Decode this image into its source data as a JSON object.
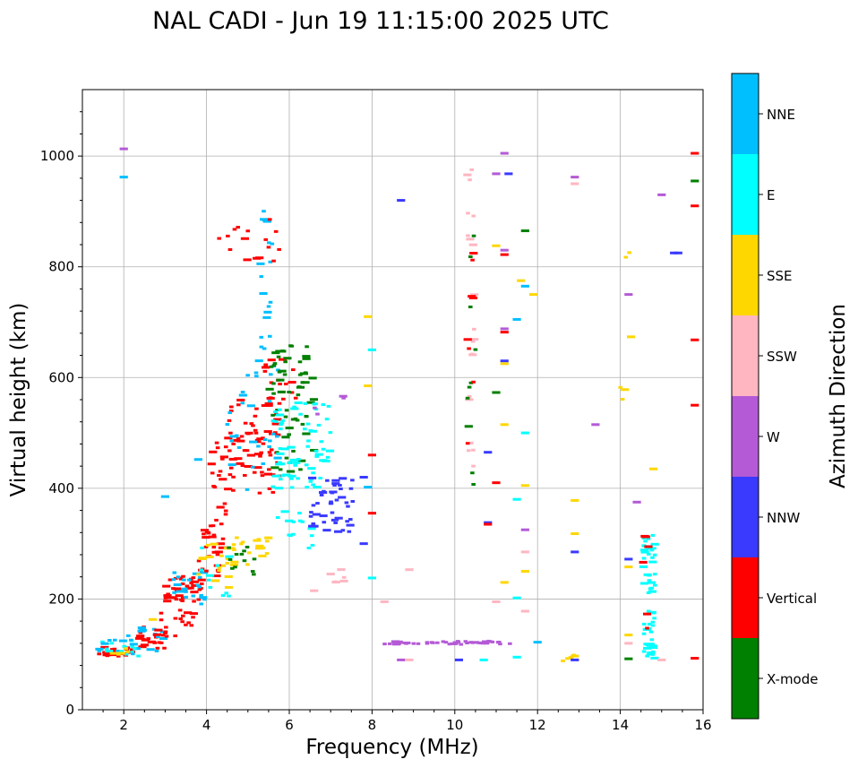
{
  "chart_data": {
    "type": "scatter",
    "title": "NAL CADI - Jun 19 11:15:00 2025 UTC",
    "xlabel": "Frequency (MHz)",
    "ylabel": "Virtual height (km)",
    "xlim": [
      1,
      16
    ],
    "ylim": [
      0,
      1120
    ],
    "xticks": [
      2,
      4,
      6,
      8,
      10,
      12,
      14,
      16
    ],
    "xtick_labels": [
      "2",
      "4",
      "6",
      "8",
      "10",
      "12",
      "14",
      "16"
    ],
    "yticks": [
      0,
      200,
      400,
      600,
      800,
      1000
    ],
    "ytick_labels": [
      "0",
      "200",
      "400",
      "600",
      "800",
      "1000"
    ],
    "grid": true,
    "colorbar": {
      "label": "Azimuth Direction",
      "categories": [
        {
          "name": "X-mode",
          "color": "#008000"
        },
        {
          "name": "Vertical",
          "color": "#ff0000"
        },
        {
          "name": "NNW",
          "color": "#3a3aff"
        },
        {
          "name": "W",
          "color": "#b45ad6"
        },
        {
          "name": "SSW",
          "color": "#ffb6c1"
        },
        {
          "name": "SSE",
          "color": "#ffd700"
        },
        {
          "name": "E",
          "color": "#00ffff"
        },
        {
          "name": "NNE",
          "color": "#00bfff"
        }
      ]
    },
    "clusters": [
      {
        "cat": "Vertical",
        "f": [
          1.4,
          2.2
        ],
        "h": [
          95,
          115
        ],
        "n": 24
      },
      {
        "cat": "E",
        "f": [
          1.4,
          2.4
        ],
        "h": [
          90,
          125
        ],
        "n": 14
      },
      {
        "cat": "NNE",
        "f": [
          1.4,
          2.6
        ],
        "h": [
          95,
          140
        ],
        "n": 12
      },
      {
        "cat": "SSE",
        "f": [
          1.7,
          2.2
        ],
        "h": [
          100,
          115
        ],
        "n": 6
      },
      {
        "cat": "Vertical",
        "f": [
          2.2,
          3.0
        ],
        "h": [
          110,
          150
        ],
        "n": 18
      },
      {
        "cat": "NNE",
        "f": [
          2.2,
          3.0
        ],
        "h": [
          105,
          150
        ],
        "n": 12
      },
      {
        "cat": "Vertical",
        "f": [
          2.8,
          3.7
        ],
        "h": [
          130,
          185
        ],
        "n": 20
      },
      {
        "cat": "Vertical",
        "f": [
          3.0,
          3.9
        ],
        "h": [
          195,
          245
        ],
        "n": 40
      },
      {
        "cat": "NNE",
        "f": [
          3.2,
          4.0
        ],
        "h": [
          190,
          250
        ],
        "n": 22
      },
      {
        "cat": "Vertical",
        "f": [
          3.8,
          4.4
        ],
        "h": [
          240,
          330
        ],
        "n": 26
      },
      {
        "cat": "SSE",
        "f": [
          3.8,
          4.6
        ],
        "h": [
          220,
          300
        ],
        "n": 16
      },
      {
        "cat": "E",
        "f": [
          3.8,
          4.6
        ],
        "h": [
          200,
          300
        ],
        "n": 10
      },
      {
        "cat": "SSE",
        "f": [
          4.4,
          5.6
        ],
        "h": [
          260,
          320
        ],
        "n": 20
      },
      {
        "cat": "X-mode",
        "f": [
          4.5,
          5.2
        ],
        "h": [
          240,
          300
        ],
        "n": 12
      },
      {
        "cat": "Vertical",
        "f": [
          4.1,
          4.6
        ],
        "h": [
          330,
          500
        ],
        "n": 22
      },
      {
        "cat": "Vertical",
        "f": [
          4.5,
          5.8
        ],
        "h": [
          390,
          560
        ],
        "n": 70
      },
      {
        "cat": "NNE",
        "f": [
          4.5,
          5.8
        ],
        "h": [
          380,
          640
        ],
        "n": 30
      },
      {
        "cat": "NNE",
        "f": [
          5.3,
          5.6
        ],
        "h": [
          640,
          910
        ],
        "n": 18
      },
      {
        "cat": "Vertical",
        "f": [
          4.3,
          5.8
        ],
        "h": [
          810,
          890
        ],
        "n": 16
      },
      {
        "cat": "Vertical",
        "f": [
          5.4,
          6.2
        ],
        "h": [
          560,
          640
        ],
        "n": 18
      },
      {
        "cat": "X-mode",
        "f": [
          5.5,
          6.6
        ],
        "h": [
          430,
          660
        ],
        "n": 60
      },
      {
        "cat": "E",
        "f": [
          5.6,
          7.0
        ],
        "h": [
          400,
          560
        ],
        "n": 70
      },
      {
        "cat": "E",
        "f": [
          5.6,
          6.6
        ],
        "h": [
          290,
          360
        ],
        "n": 16
      },
      {
        "cat": "NNW",
        "f": [
          6.5,
          7.6
        ],
        "h": [
          320,
          420
        ],
        "n": 45
      },
      {
        "cat": "W",
        "f": [
          6.6,
          7.4
        ],
        "h": [
          520,
          570
        ],
        "n": 4
      },
      {
        "cat": "SSW",
        "f": [
          6.8,
          7.4
        ],
        "h": [
          230,
          260
        ],
        "n": 6
      },
      {
        "cat": "W",
        "f": [
          8.3,
          11.4
        ],
        "h": [
          118,
          124
        ],
        "n": 44
      },
      {
        "cat": "SSW",
        "f": [
          10.3,
          10.5
        ],
        "h": [
          420,
          980
        ],
        "n": 20
      },
      {
        "cat": "X-mode",
        "f": [
          10.3,
          10.5
        ],
        "h": [
          380,
          890
        ],
        "n": 10
      },
      {
        "cat": "Vertical",
        "f": [
          10.3,
          10.5
        ],
        "h": [
          480,
          830
        ],
        "n": 8
      },
      {
        "cat": "SSE",
        "f": [
          12.5,
          13.0
        ],
        "h": [
          85,
          100
        ],
        "n": 4
      },
      {
        "cat": "SSE",
        "f": [
          14.0,
          14.3
        ],
        "h": [
          560,
          830
        ],
        "n": 6
      },
      {
        "cat": "E",
        "f": [
          14.55,
          14.85
        ],
        "h": [
          90,
          320
        ],
        "n": 60
      },
      {
        "cat": "Vertical",
        "f": [
          14.55,
          14.85
        ],
        "h": [
          120,
          320
        ],
        "n": 6
      }
    ],
    "points": [
      {
        "f": 15.8,
        "h": 1005,
        "cat": "Vertical"
      },
      {
        "f": 15.8,
        "h": 955,
        "cat": "X-mode"
      },
      {
        "f": 15.8,
        "h": 910,
        "cat": "Vertical"
      },
      {
        "f": 15.8,
        "h": 668,
        "cat": "Vertical"
      },
      {
        "f": 15.8,
        "h": 550,
        "cat": "Vertical"
      },
      {
        "f": 15.8,
        "h": 93,
        "cat": "Vertical"
      },
      {
        "f": 15.3,
        "h": 825,
        "cat": "NNW"
      },
      {
        "f": 15.4,
        "h": 825,
        "cat": "NNW"
      },
      {
        "f": 15.0,
        "h": 930,
        "cat": "W"
      },
      {
        "f": 14.8,
        "h": 435,
        "cat": "SSE"
      },
      {
        "f": 14.4,
        "h": 375,
        "cat": "W"
      },
      {
        "f": 14.2,
        "h": 750,
        "cat": "W"
      },
      {
        "f": 14.2,
        "h": 272,
        "cat": "NNW"
      },
      {
        "f": 14.2,
        "h": 258,
        "cat": "SSE"
      },
      {
        "f": 14.2,
        "h": 135,
        "cat": "SSE"
      },
      {
        "f": 14.2,
        "h": 120,
        "cat": "SSW"
      },
      {
        "f": 14.2,
        "h": 92,
        "cat": "X-mode"
      },
      {
        "f": 15.0,
        "h": 90,
        "cat": "SSW"
      },
      {
        "f": 13.4,
        "h": 515,
        "cat": "W"
      },
      {
        "f": 12.9,
        "h": 962,
        "cat": "W"
      },
      {
        "f": 12.9,
        "h": 950,
        "cat": "SSW"
      },
      {
        "f": 12.9,
        "h": 378,
        "cat": "SSE"
      },
      {
        "f": 12.9,
        "h": 318,
        "cat": "SSE"
      },
      {
        "f": 12.9,
        "h": 285,
        "cat": "NNW"
      },
      {
        "f": 12.9,
        "h": 90,
        "cat": "NNW"
      },
      {
        "f": 12.9,
        "h": 97,
        "cat": "SSE"
      },
      {
        "f": 11.9,
        "h": 750,
        "cat": "SSE"
      },
      {
        "f": 12.0,
        "h": 122,
        "cat": "NNE"
      },
      {
        "f": 11.7,
        "h": 865,
        "cat": "X-mode"
      },
      {
        "f": 11.7,
        "h": 765,
        "cat": "NNE"
      },
      {
        "f": 11.7,
        "h": 500,
        "cat": "E"
      },
      {
        "f": 11.7,
        "h": 405,
        "cat": "SSE"
      },
      {
        "f": 11.7,
        "h": 325,
        "cat": "W"
      },
      {
        "f": 11.7,
        "h": 285,
        "cat": "SSW"
      },
      {
        "f": 11.7,
        "h": 250,
        "cat": "SSE"
      },
      {
        "f": 11.7,
        "h": 178,
        "cat": "SSW"
      },
      {
        "f": 11.5,
        "h": 705,
        "cat": "NNE"
      },
      {
        "f": 11.5,
        "h": 380,
        "cat": "E"
      },
      {
        "f": 11.5,
        "h": 202,
        "cat": "E"
      },
      {
        "f": 11.5,
        "h": 95,
        "cat": "E"
      },
      {
        "f": 11.6,
        "h": 775,
        "cat": "SSE"
      },
      {
        "f": 11.2,
        "h": 1005,
        "cat": "W"
      },
      {
        "f": 11.3,
        "h": 968,
        "cat": "NNW"
      },
      {
        "f": 11.0,
        "h": 968,
        "cat": "W"
      },
      {
        "f": 11.2,
        "h": 830,
        "cat": "W"
      },
      {
        "f": 11.2,
        "h": 822,
        "cat": "Vertical"
      },
      {
        "f": 11.0,
        "h": 838,
        "cat": "SSE"
      },
      {
        "f": 11.2,
        "h": 688,
        "cat": "W"
      },
      {
        "f": 11.2,
        "h": 682,
        "cat": "Vertical"
      },
      {
        "f": 11.2,
        "h": 630,
        "cat": "NNW"
      },
      {
        "f": 11.2,
        "h": 625,
        "cat": "SSE"
      },
      {
        "f": 11.0,
        "h": 573,
        "cat": "X-mode"
      },
      {
        "f": 11.2,
        "h": 515,
        "cat": "SSE"
      },
      {
        "f": 11.0,
        "h": 410,
        "cat": "Vertical"
      },
      {
        "f": 10.8,
        "h": 465,
        "cat": "NNW"
      },
      {
        "f": 10.8,
        "h": 338,
        "cat": "NNW"
      },
      {
        "f": 10.8,
        "h": 335,
        "cat": "Vertical"
      },
      {
        "f": 11.0,
        "h": 195,
        "cat": "SSW"
      },
      {
        "f": 11.2,
        "h": 230,
        "cat": "SSE"
      },
      {
        "f": 10.7,
        "h": 90,
        "cat": "E"
      },
      {
        "f": 10.1,
        "h": 90,
        "cat": "NNW"
      },
      {
        "f": 8.7,
        "h": 90,
        "cat": "W"
      },
      {
        "f": 8.9,
        "h": 90,
        "cat": "SSW"
      },
      {
        "f": 8.9,
        "h": 253,
        "cat": "SSW"
      },
      {
        "f": 8.3,
        "h": 195,
        "cat": "SSW"
      },
      {
        "f": 8.7,
        "h": 920,
        "cat": "NNW"
      },
      {
        "f": 7.9,
        "h": 710,
        "cat": "SSE"
      },
      {
        "f": 7.9,
        "h": 585,
        "cat": "SSE"
      },
      {
        "f": 8.0,
        "h": 650,
        "cat": "E"
      },
      {
        "f": 8.0,
        "h": 460,
        "cat": "Vertical"
      },
      {
        "f": 7.8,
        "h": 420,
        "cat": "NNW"
      },
      {
        "f": 7.9,
        "h": 402,
        "cat": "NNE"
      },
      {
        "f": 8.0,
        "h": 238,
        "cat": "E"
      },
      {
        "f": 7.8,
        "h": 300,
        "cat": "NNW"
      },
      {
        "f": 8.0,
        "h": 355,
        "cat": "Vertical"
      },
      {
        "f": 6.6,
        "h": 215,
        "cat": "SSW"
      },
      {
        "f": 2.0,
        "h": 1013,
        "cat": "W"
      },
      {
        "f": 2.0,
        "h": 962,
        "cat": "NNE"
      },
      {
        "f": 3.0,
        "h": 385,
        "cat": "NNE"
      },
      {
        "f": 3.8,
        "h": 452,
        "cat": "NNE"
      },
      {
        "f": 2.7,
        "h": 163,
        "cat": "SSE"
      }
    ]
  }
}
